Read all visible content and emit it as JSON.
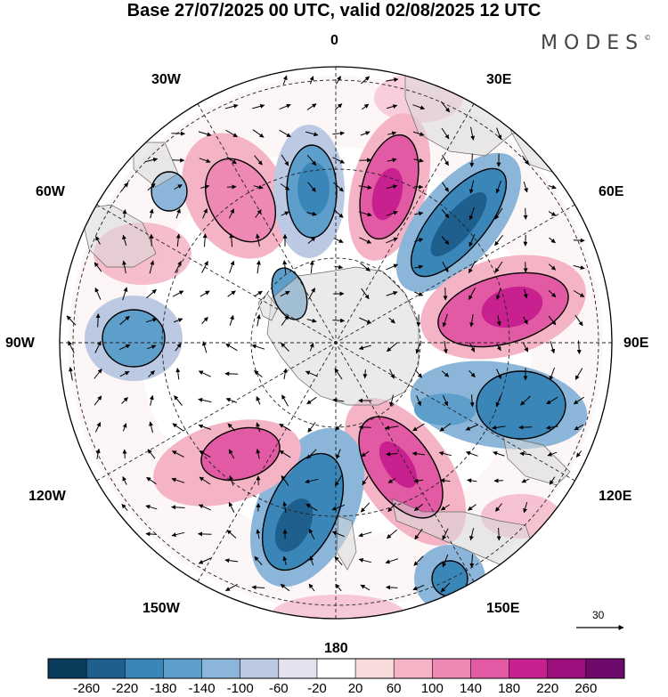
{
  "title": "Base 27/07/2025 00 UTC, valid 02/08/2025 12 UTC",
  "brand": "MODES",
  "brand_mark": "©",
  "longitude_labels": {
    "lon_0": "0",
    "lon_30e": "30E",
    "lon_60e": "60E",
    "lon_90e": "90E",
    "lon_120e": "120E",
    "lon_150e": "150E",
    "lon_180": "180",
    "lon_150w": "150W",
    "lon_120w": "120W",
    "lon_90w": "90W",
    "lon_60w": "60W",
    "lon_30w": "30W"
  },
  "reference_vector": {
    "label": "30"
  },
  "colorbar": {
    "ticks": [
      "-260",
      "-220",
      "-180",
      "-140",
      "-100",
      "-60",
      "-20",
      "20",
      "60",
      "100",
      "140",
      "180",
      "220",
      "260"
    ],
    "colors": [
      "#0c3c5c",
      "#1f5f8e",
      "#3b86b8",
      "#5d9ecb",
      "#8cb6d9",
      "#bcc9e2",
      "#e3e3f0",
      "#ffffff",
      "#f8dcdc",
      "#f4b4c6",
      "#ee88b4",
      "#e25aa3",
      "#c8208f",
      "#9b107c",
      "#6d0a6c"
    ]
  }
}
